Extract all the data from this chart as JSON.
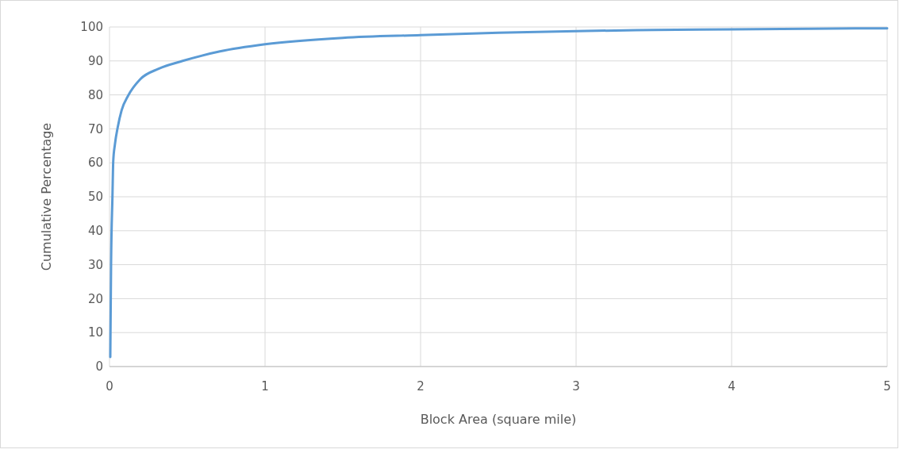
{
  "chart_data": {
    "type": "line",
    "xlabel": "Block Area (square mile)",
    "ylabel": "Cumulative Percentage",
    "x": [
      0.005,
      0.01,
      0.019,
      0.024,
      0.035,
      0.053,
      0.078,
      0.12,
      0.197,
      0.316,
      0.47,
      0.71,
      1.0,
      1.5,
      2.0,
      2.5,
      3.0,
      3.5,
      4.0,
      4.5,
      5.0
    ],
    "series": [
      {
        "color": "#5b9bd5",
        "values": [
          2.8,
          30,
          50.3,
          60.5,
          65.5,
          70.5,
          75.5,
          79.8,
          84.6,
          87.7,
          90,
          92.8,
          94.9,
          96.8,
          97.6,
          98.3,
          98.8,
          99.1,
          99.3,
          99.5,
          99.6
        ]
      }
    ],
    "xlim": [
      0,
      5
    ],
    "ylim": [
      0,
      100
    ],
    "xticks": [
      0,
      1,
      2,
      3,
      4,
      5
    ],
    "yticks": [
      0,
      10,
      20,
      30,
      40,
      50,
      60,
      70,
      80,
      90,
      100
    ],
    "grid": true,
    "marker": "none",
    "line_style": "solid"
  }
}
